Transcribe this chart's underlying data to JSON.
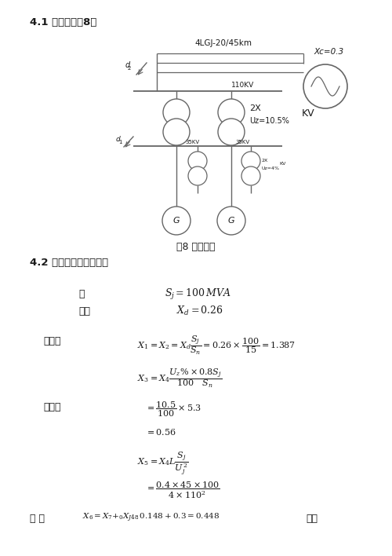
{
  "title_section": "4.1 电路简化图8：",
  "fig_caption": "图8 电路简化",
  "section2_title": "4.2 计算各元件的标么値",
  "label_qu": "取",
  "label_chade": "查得",
  "label_fadianji": "发电机",
  "label_bianyaqi": "变压器",
  "label_xianlu": "线 路",
  "label_diankang": "电抗",
  "background_color": "#ffffff",
  "text_color": "#1a1a1a",
  "line_color": "#666666",
  "diagram_label_4lgj": "4LGJ-20/45km",
  "diagram_label_xc": "Xc=0.3",
  "diagram_label_110kv": "110KV",
  "diagram_label_2x": "2X",
  "diagram_label_uz": "Uz=10.5%",
  "diagram_label_kv": "KV",
  "diagram_label_d2": "d2",
  "diagram_label_d1": "d1",
  "diagram_label_35kv_l": "35KV",
  "diagram_label_35kv_r": "35KV",
  "diagram_label_2x_small": "2X",
  "diagram_label_uz_small": "Uz=4%",
  "diagram_label_kv_small": "KV"
}
